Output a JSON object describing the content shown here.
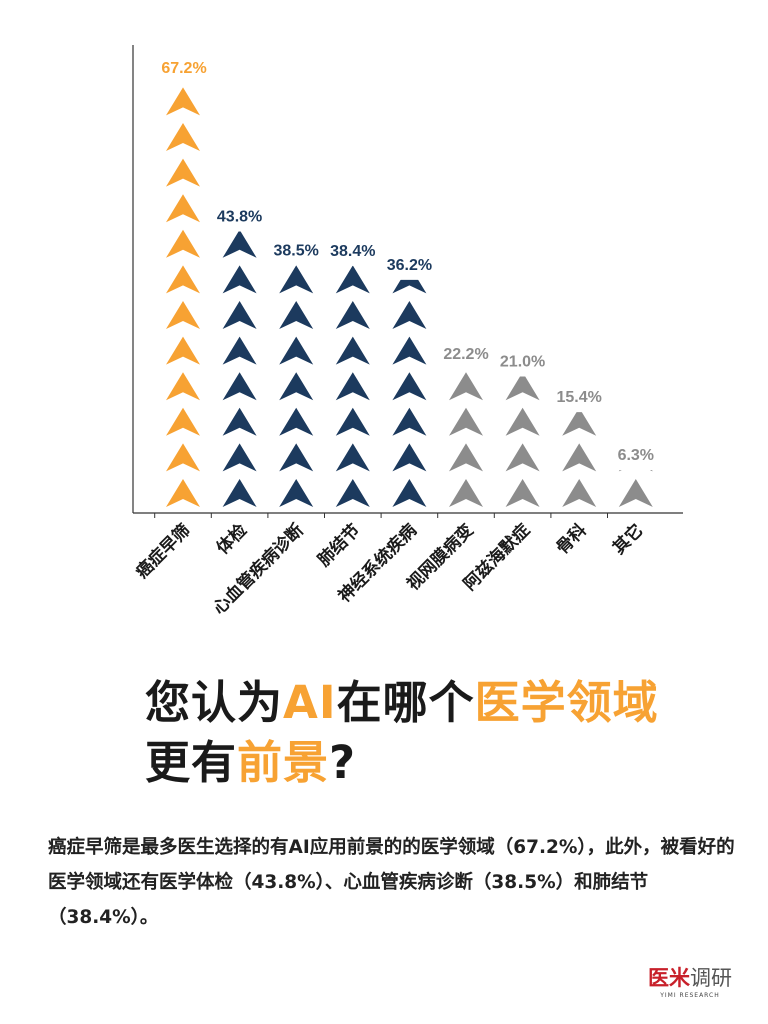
{
  "chart_data": {
    "type": "pictograph-bar",
    "categories": [
      "癌症早筛",
      "体检",
      "心血管疾病诊断",
      "肺结节",
      "神经系统疾病",
      "视网膜病变",
      "阿兹海默症",
      "骨科",
      "其它"
    ],
    "values": [
      67.2,
      43.8,
      38.5,
      38.4,
      36.2,
      22.2,
      21.0,
      15.4,
      6.3
    ],
    "value_labels": [
      "67.2%",
      "43.8%",
      "38.5%",
      "38.4%",
      "36.2%",
      "22.2%",
      "21.0%",
      "15.4%",
      "6.3%"
    ],
    "colors": [
      "#f7a233",
      "#1c3a5e",
      "#1c3a5e",
      "#1c3a5e",
      "#1c3a5e",
      "#8c8c8c",
      "#8c8c8c",
      "#8c8c8c",
      "#8c8c8c"
    ],
    "icon": "arrow-up-icon",
    "xlabel": "",
    "ylabel": "",
    "grid": false
  },
  "title": {
    "line1": [
      {
        "t": "您认为",
        "hl": false
      },
      {
        "t": "AI",
        "hl": true
      },
      {
        "t": "在哪个",
        "hl": false
      },
      {
        "t": "医学领域",
        "hl": true
      }
    ],
    "line2": [
      {
        "t": "更有",
        "hl": false
      },
      {
        "t": "前景",
        "hl": true
      },
      {
        "t": "?",
        "hl": false
      }
    ]
  },
  "paragraph": "癌症早筛是最多医生选择的有AI应用前景的的医学领域（67.2%），此外，被看好的医学领域还有医学体检（43.8%）、心血管疾病诊断（38.5%）和肺结节（38.4%）。",
  "logo": {
    "red": "医米",
    "gray": "调研",
    "en": "YIMI RESEARCH"
  },
  "colors": {
    "accent": "#f7a233",
    "navy": "#1c3a5e",
    "gray": "#8c8c8c"
  }
}
